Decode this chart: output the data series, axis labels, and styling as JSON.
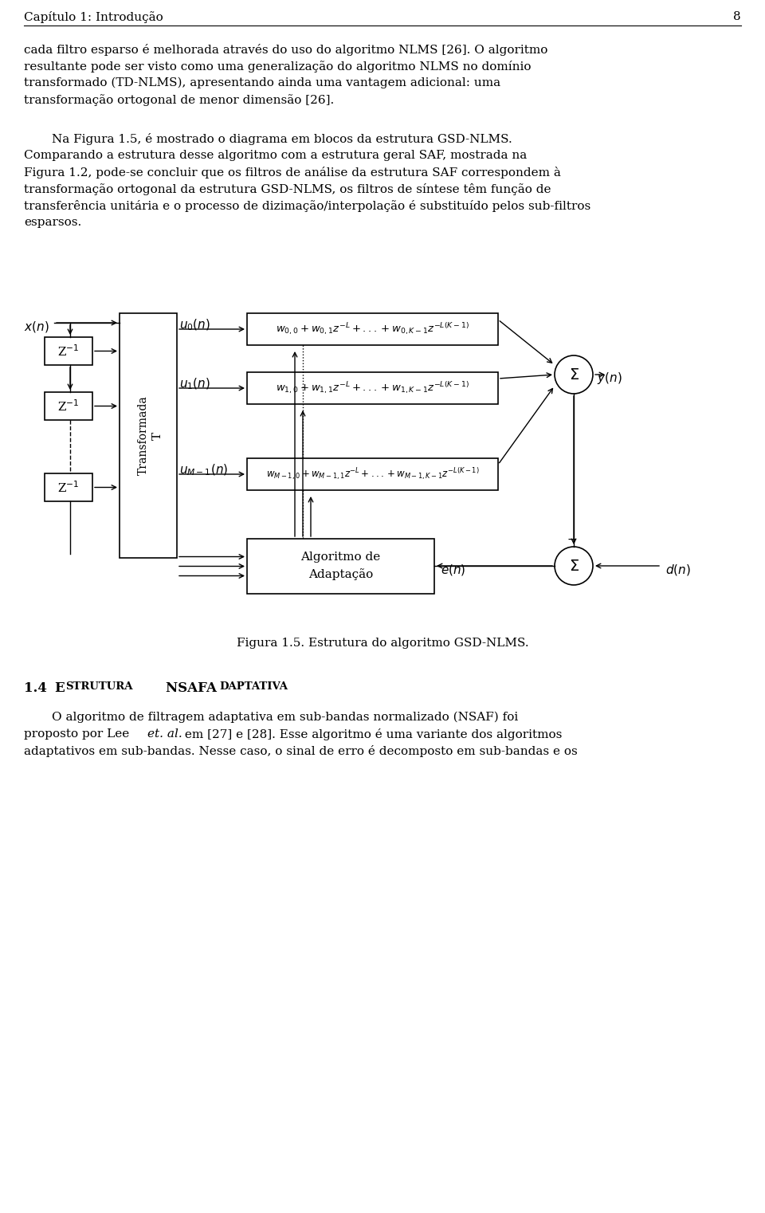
{
  "bg_color": "#ffffff",
  "header_text": "Capítulo 1: Introdução",
  "page_num": "8",
  "p1_lines": [
    "cada filtro esparso é melhorada através do uso do algoritmo NLMS [26]. O algoritmo",
    "resultante pode ser visto como uma generalização do algoritmo NLMS no domínio",
    "transformado (TD-NLMS), apresentando ainda uma vantagem adicional: uma",
    "transformação ortogonal de menor dimensão [26]."
  ],
  "p2_lines": [
    [
      "indent",
      "Na Figura 1.5, é mostrado o diagrama em blocos da estrutura GSD-NLMS."
    ],
    [
      "full",
      "Comparando a estrutura desse algoritmo com a estrutura geral SAF, mostrada na"
    ],
    [
      "full",
      "Figura 1.2, pode-se concluir que os filtros de análise da estrutura SAF correspondem à"
    ],
    [
      "full",
      "transformação ortogonal da estrutura GSD-NLMS, os filtros de síntese têm função de"
    ],
    [
      "full",
      "transferência unitária e o processo de dizimação/interpolação é substituído pelos sub-filtros"
    ],
    [
      "full",
      "esparsos."
    ]
  ],
  "figure_caption": "Figura 1.5. Estrutura do algoritmo GSD-NLMS.",
  "section_title_parts": [
    [
      "bold_large",
      "1.4 "
    ],
    [
      "bold_small",
      "ESTRUTURA "
    ],
    [
      "bold_large",
      "NSAF "
    ],
    [
      "bold_small",
      "ADAPTATIVA"
    ]
  ],
  "p3_lines": [
    [
      "indent",
      "O algoritmo de filtragem adaptativa em sub-bandas normalizado (NSAF) foi"
    ],
    [
      "full",
      "proposto por Lee "
    ],
    [
      "full",
      "adaptativos em sub-bandas. Nesse caso, o sinal de erro é decomposto em sub-bandas e os"
    ]
  ],
  "p3_line1": "O algoritmo de filtragem adaptativa em sub-bandas normalizado (NSAF) foi",
  "p3_line2_pre": "proposto por Lee ",
  "p3_line2_italic": "et. al.",
  "p3_line2_post": " em [27] e [28]. Esse algoritmo é uma variante dos algoritmos",
  "p3_line3": "adaptativos em sub-bandas. Nesse caso, o sinal de erro é decomposto em sub-bandas e os"
}
